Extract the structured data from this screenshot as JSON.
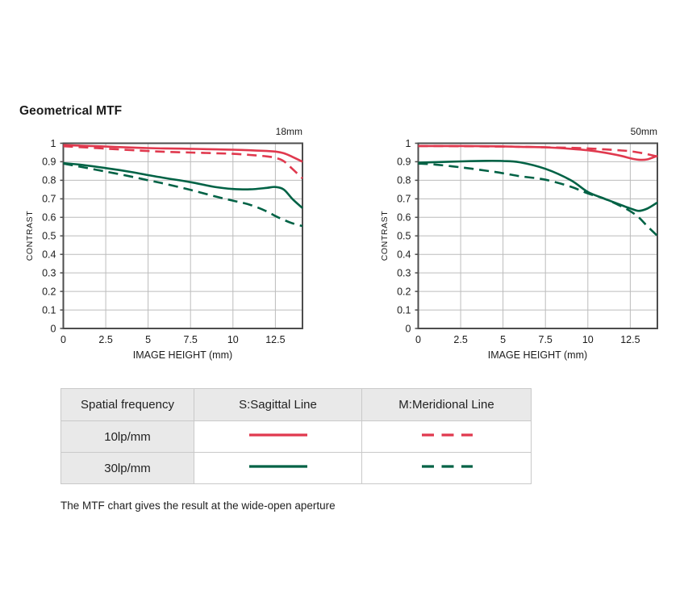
{
  "page": {
    "title": "Geometrical MTF",
    "caption": "The MTF chart gives the result at the wide-open aperture"
  },
  "colors": {
    "red": "#e0394e",
    "green": "#006245",
    "axis": "#4d4d4d",
    "grid": "#bcbcbc",
    "tick_text": "#1c1c1c"
  },
  "chart_data": [
    {
      "type": "line",
      "title": "18mm",
      "xlabel": "IMAGE HEIGHT (mm)",
      "ylabel": "CONTRAST",
      "xlim": [
        0,
        14.1
      ],
      "ylim": [
        0,
        1
      ],
      "grid": true,
      "legend_position": "table-below",
      "xticks": [
        0,
        2.5,
        5,
        7.5,
        10,
        12.5
      ],
      "xtick_labels": [
        "0",
        "2.5",
        "5",
        "7.5",
        "10",
        "12.5"
      ],
      "yticks": [
        0,
        0.1,
        0.2,
        0.3,
        0.4,
        0.5,
        0.6,
        0.7,
        0.8,
        0.9,
        1
      ],
      "ytick_labels": [
        "0",
        "0.1",
        "0.2",
        "0.3",
        "0.4",
        "0.5",
        "0.6",
        "0.7",
        "0.8",
        "0.9",
        "1"
      ],
      "x": [
        0,
        1,
        2.5,
        4,
        5,
        6,
        7.5,
        9,
        10,
        11,
        12,
        12.5,
        13,
        13.5,
        14.1
      ],
      "series": [
        {
          "name": "10lp/mm Sagittal",
          "style": "solid",
          "color": "#e0394e",
          "values": [
            0.99,
            0.987,
            0.982,
            0.977,
            0.974,
            0.972,
            0.97,
            0.967,
            0.965,
            0.962,
            0.958,
            0.955,
            0.946,
            0.927,
            0.9
          ]
        },
        {
          "name": "10lp/mm Meridional",
          "style": "dashed",
          "color": "#e0394e",
          "values": [
            0.984,
            0.979,
            0.971,
            0.963,
            0.958,
            0.954,
            0.95,
            0.946,
            0.943,
            0.937,
            0.929,
            0.921,
            0.903,
            0.862,
            0.81
          ]
        },
        {
          "name": "30lp/mm Sagittal",
          "style": "solid",
          "color": "#006245",
          "values": [
            0.893,
            0.884,
            0.866,
            0.845,
            0.828,
            0.812,
            0.79,
            0.763,
            0.753,
            0.751,
            0.759,
            0.764,
            0.75,
            0.7,
            0.65
          ]
        },
        {
          "name": "30lp/mm Meridional",
          "style": "dashed",
          "color": "#006245",
          "values": [
            0.89,
            0.873,
            0.847,
            0.82,
            0.8,
            0.781,
            0.748,
            0.712,
            0.69,
            0.668,
            0.632,
            0.607,
            0.586,
            0.568,
            0.553
          ]
        }
      ]
    },
    {
      "type": "line",
      "title": "50mm",
      "xlabel": "IMAGE HEIGHT (mm)",
      "ylabel": "CONTRAST",
      "xlim": [
        0,
        14.1
      ],
      "ylim": [
        0,
        1
      ],
      "grid": true,
      "legend_position": "table-below",
      "xticks": [
        0,
        2.5,
        5,
        7.5,
        10,
        12.5
      ],
      "xtick_labels": [
        "0",
        "2.5",
        "5",
        "7.5",
        "10",
        "12.5"
      ],
      "yticks": [
        0,
        0.1,
        0.2,
        0.3,
        0.4,
        0.5,
        0.6,
        0.7,
        0.8,
        0.9,
        1
      ],
      "ytick_labels": [
        "0",
        "0.1",
        "0.2",
        "0.3",
        "0.4",
        "0.5",
        "0.6",
        "0.7",
        "0.8",
        "0.9",
        "1"
      ],
      "x": [
        0,
        1,
        2.5,
        4,
        5,
        6,
        7.5,
        9,
        10,
        11,
        12,
        12.5,
        13,
        13.5,
        14.1
      ],
      "series": [
        {
          "name": "10lp/mm Sagittal",
          "style": "solid",
          "color": "#e0394e",
          "values": [
            0.985,
            0.985,
            0.985,
            0.984,
            0.983,
            0.981,
            0.978,
            0.97,
            0.962,
            0.949,
            0.931,
            0.919,
            0.911,
            0.913,
            0.932
          ]
        },
        {
          "name": "10lp/mm Meridional",
          "style": "dashed",
          "color": "#e0394e",
          "values": [
            0.985,
            0.985,
            0.984,
            0.983,
            0.982,
            0.981,
            0.978,
            0.975,
            0.972,
            0.967,
            0.961,
            0.957,
            0.95,
            0.941,
            0.928
          ]
        },
        {
          "name": "30lp/mm Sagittal",
          "style": "solid",
          "color": "#006245",
          "values": [
            0.895,
            0.898,
            0.902,
            0.905,
            0.904,
            0.897,
            0.862,
            0.8,
            0.737,
            0.7,
            0.665,
            0.648,
            0.635,
            0.647,
            0.68
          ]
        },
        {
          "name": "30lp/mm Meridional",
          "style": "dashed",
          "color": "#006245",
          "values": [
            0.89,
            0.885,
            0.87,
            0.852,
            0.838,
            0.822,
            0.803,
            0.765,
            0.729,
            0.7,
            0.658,
            0.633,
            0.6,
            0.553,
            0.5
          ]
        }
      ]
    }
  ],
  "table": {
    "headers": [
      "Spatial frequency",
      "S:Sagittal Line",
      "M:Meridional Line"
    ],
    "rows": [
      {
        "label": "10lp/mm",
        "color": "#e0394e"
      },
      {
        "label": "30lp/mm",
        "color": "#006245"
      }
    ]
  }
}
